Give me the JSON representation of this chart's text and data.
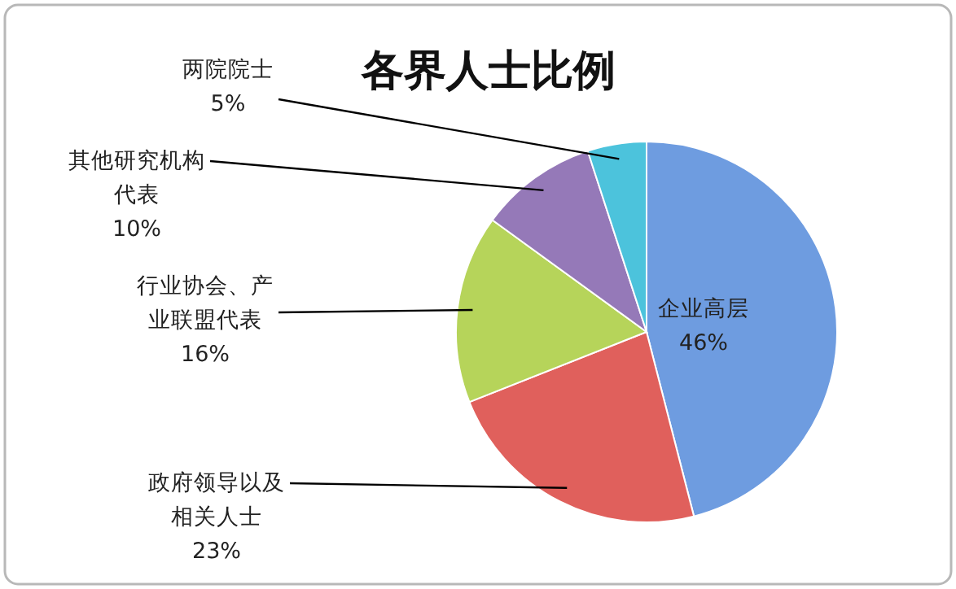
{
  "chart_data": {
    "type": "pie",
    "title": "各界人士比例",
    "categories": [
      "企业高层",
      "政府领导以及相关人士",
      "行业协会、产业联盟代表",
      "其他研究机构代表",
      "两院院士"
    ],
    "values": [
      46,
      23,
      16,
      10,
      5
    ],
    "colors": [
      "#6e9ce0",
      "#e0605c",
      "#b6d45a",
      "#9579b8",
      "#4cc3dc"
    ],
    "value_labels": [
      "46%",
      "23%",
      "16%",
      "10%",
      "5%"
    ],
    "legend": false
  }
}
